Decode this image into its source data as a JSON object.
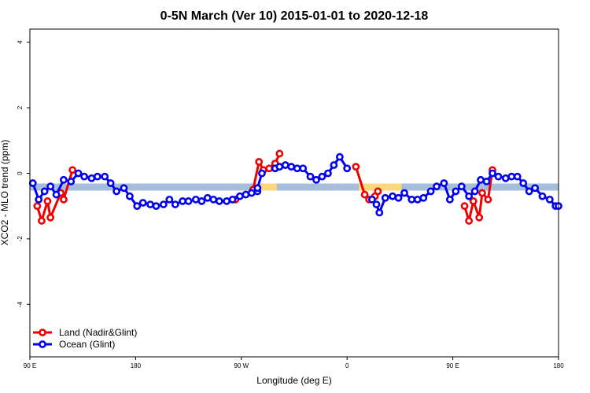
{
  "chart_data": {
    "type": "line",
    "title": "0-5N March (Ver 10)   2015-01-01 to 2020-12-18",
    "xlabel": "Longitude (deg E)",
    "ylabel": "XCO2 - MLO trend (ppm)",
    "xlim": [
      90,
      450
    ],
    "ylim": [
      -5.6,
      4.4
    ],
    "x_ticks": [
      {
        "value": 90,
        "label": "90 E"
      },
      {
        "value": 162,
        "label": "180"
      },
      {
        "value": 234,
        "label": "90 W"
      },
      {
        "value": 306,
        "label": "0"
      },
      {
        "value": 378,
        "label": "90 E"
      },
      {
        "value": 450,
        "label": "180"
      }
    ],
    "y_ticks": [
      {
        "value": 4,
        "label": "4"
      },
      {
        "value": 2,
        "label": "2"
      },
      {
        "value": 0,
        "label": "0"
      },
      {
        "value": -2,
        "label": "-2"
      },
      {
        "value": -4,
        "label": "-4"
      }
    ],
    "band": {
      "y": -0.42,
      "segments": [
        {
          "x0": 90,
          "x1": 244,
          "color": "#a6bddb"
        },
        {
          "x0": 244,
          "x1": 258,
          "color": "#fdd87a"
        },
        {
          "x0": 258,
          "x1": 298,
          "color": "#a6bddb"
        },
        {
          "x0": 298,
          "x1": 322,
          "color": "#a6bddb"
        },
        {
          "x0": 298,
          "x1": 100000,
          "color": "#ffffff"
        }
      ]
    },
    "band_segments": [
      {
        "x0": 90,
        "x1": 244,
        "color": "#a6bddb"
      },
      {
        "x0": 244,
        "x1": 258,
        "color": "#fdd87a"
      },
      {
        "x0": 258,
        "x1": 298,
        "color": "#a6bddb"
      },
      {
        "x0": 298,
        "x1": 314,
        "color": "#a6bddb"
      },
      {
        "x0": 314,
        "x1": 343,
        "color": "#fdd87a"
      },
      {
        "x0": 343,
        "x1": 450,
        "color": "#a6bddb"
      }
    ],
    "series": [
      {
        "name": "Land (Nadir&Glint)",
        "color": "#ee0000",
        "segments": [
          {
            "x": [
              95,
              98,
              102,
              104,
              111,
              113,
              119
            ],
            "y": [
              -1.0,
              -1.45,
              -0.85,
              -1.35,
              -0.6,
              -0.8,
              0.1
            ]
          },
          {
            "x": [
              230
            ],
            "y": [
              -0.8
            ]
          },
          {
            "x": [
              242,
              246,
              249,
              253,
              257,
              260
            ],
            "y": [
              -0.5,
              0.35,
              0.1,
              0.15,
              0.3,
              0.6
            ]
          },
          {
            "x": [
              312,
              318,
              321,
              325,
              327
            ],
            "y": [
              0.2,
              -0.65,
              -0.8,
              -0.7,
              -0.55
            ]
          },
          {
            "x": [
              386,
              389,
              392,
              396,
              398,
              402,
              405
            ],
            "y": [
              -1.0,
              -1.45,
              -0.85,
              -1.35,
              -0.6,
              -0.8,
              0.1
            ]
          }
        ]
      },
      {
        "name": "Ocean (Glint)",
        "color": "#0000ee",
        "segments": [
          {
            "x": [
              92,
              96,
              100,
              104,
              108,
              113,
              118,
              123,
              127,
              132,
              136,
              141,
              145,
              149,
              154,
              158,
              163,
              167,
              172,
              176,
              181,
              185,
              189,
              194,
              198,
              203,
              207,
              211,
              215,
              219,
              224,
              228,
              233,
              237,
              241,
              245
            ],
            "y": [
              -0.3,
              -0.8,
              -0.55,
              -0.4,
              -0.65,
              -0.2,
              -0.25,
              0.0,
              -0.1,
              -0.15,
              -0.1,
              -0.1,
              -0.3,
              -0.55,
              -0.45,
              -0.7,
              -1.0,
              -0.9,
              -0.95,
              -1.0,
              -0.95,
              -0.8,
              -0.95,
              -0.85,
              -0.85,
              -0.8,
              -0.85,
              -0.75,
              -0.8,
              -0.85,
              -0.85,
              -0.8,
              -0.7,
              -0.65,
              -0.6,
              -0.55
            ]
          },
          {
            "x": [
              245,
              248
            ],
            "y": [
              -0.45,
              0.0
            ]
          },
          {
            "x": [
              257,
              260,
              264,
              268,
              272,
              276,
              281,
              285,
              289,
              293,
              297,
              301,
              306
            ],
            "y": [
              0.15,
              0.2,
              0.25,
              0.2,
              0.15,
              0.15,
              -0.1,
              -0.2,
              -0.1,
              0.0,
              0.25,
              0.5,
              0.15
            ]
          },
          {
            "x": [
              323,
              326,
              328,
              332,
              337,
              341,
              345,
              350,
              354,
              358,
              363,
              367,
              372,
              376,
              380,
              384,
              389,
              393,
              397,
              401,
              405,
              409,
              414,
              418,
              422,
              426,
              430,
              434,
              439,
              444,
              448,
              450
            ],
            "y": [
              -0.8,
              -0.95,
              -1.2,
              -0.75,
              -0.7,
              -0.75,
              -0.6,
              -0.8,
              -0.8,
              -0.75,
              -0.55,
              -0.4,
              -0.3,
              -0.8,
              -0.55,
              -0.4,
              -0.7,
              -0.55,
              -0.2,
              -0.25,
              0.0,
              -0.1,
              -0.15,
              -0.1,
              -0.1,
              -0.3,
              -0.55,
              -0.45,
              -0.7,
              -0.8,
              -1.0,
              -1.0
            ]
          }
        ]
      }
    ],
    "legend": {
      "position": "bottom-left",
      "entries": [
        {
          "label": "Land (Nadir&Glint)",
          "color": "#ee0000"
        },
        {
          "label": "Ocean (Glint)",
          "color": "#0000ee"
        }
      ]
    },
    "grid": false
  }
}
